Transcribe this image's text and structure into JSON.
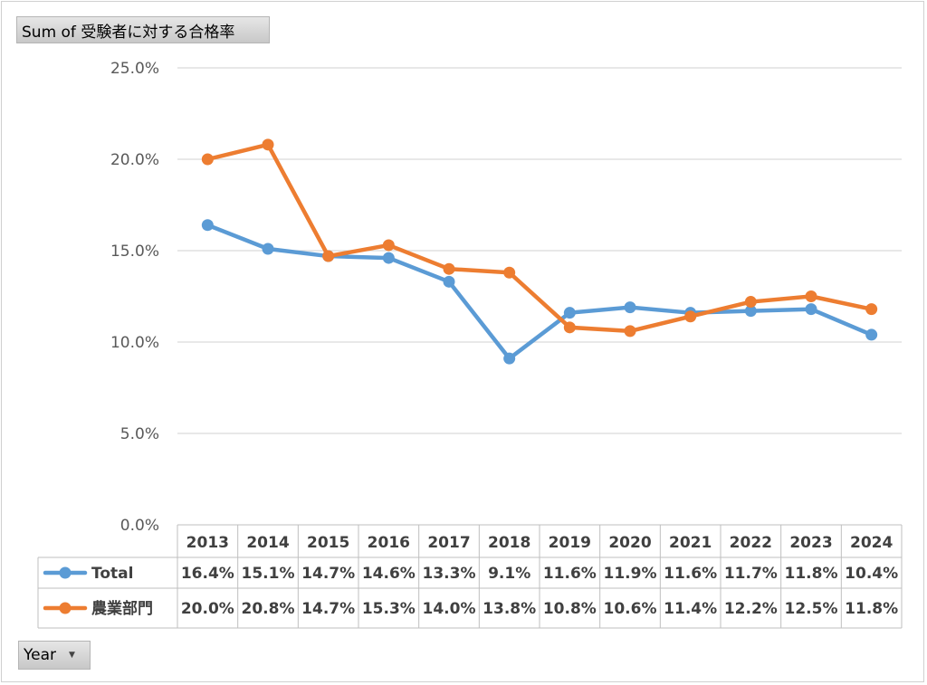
{
  "field_buttons": {
    "value_field": "Sum of 受験者に対する合格率",
    "axis_field": "Year",
    "axis_field_dropdown_icon": "dropdown-arrow-icon"
  },
  "colors": {
    "total": "#5b9bd5",
    "agri": "#ed7d31",
    "grid": "#d9d9d9",
    "table_border": "#bfbfbf"
  },
  "chart_data": {
    "type": "line",
    "title": "",
    "xlabel": "",
    "ylabel": "",
    "ylim": [
      0,
      25
    ],
    "yticks": [
      "0.0%",
      "5.0%",
      "10.0%",
      "15.0%",
      "20.0%",
      "25.0%"
    ],
    "grid": true,
    "legend": "data-table",
    "categories": [
      "2013",
      "2014",
      "2015",
      "2016",
      "2017",
      "2018",
      "2019",
      "2020",
      "2021",
      "2022",
      "2023",
      "2024"
    ],
    "series": [
      {
        "name": "Total",
        "values": [
          16.4,
          15.1,
          14.7,
          14.6,
          13.3,
          9.1,
          11.6,
          11.9,
          11.6,
          11.7,
          11.8,
          10.4
        ],
        "labels": [
          "16.4%",
          "15.1%",
          "14.7%",
          "14.6%",
          "13.3%",
          "9.1%",
          "11.6%",
          "11.9%",
          "11.6%",
          "11.7%",
          "11.8%",
          "10.4%"
        ]
      },
      {
        "name": "農業部門",
        "values": [
          20.0,
          20.8,
          14.7,
          15.3,
          14.0,
          13.8,
          10.8,
          10.6,
          11.4,
          12.2,
          12.5,
          11.8
        ],
        "labels": [
          "20.0%",
          "20.8%",
          "14.7%",
          "15.3%",
          "14.0%",
          "13.8%",
          "10.8%",
          "10.6%",
          "11.4%",
          "12.2%",
          "12.5%",
          "11.8%"
        ]
      }
    ]
  }
}
